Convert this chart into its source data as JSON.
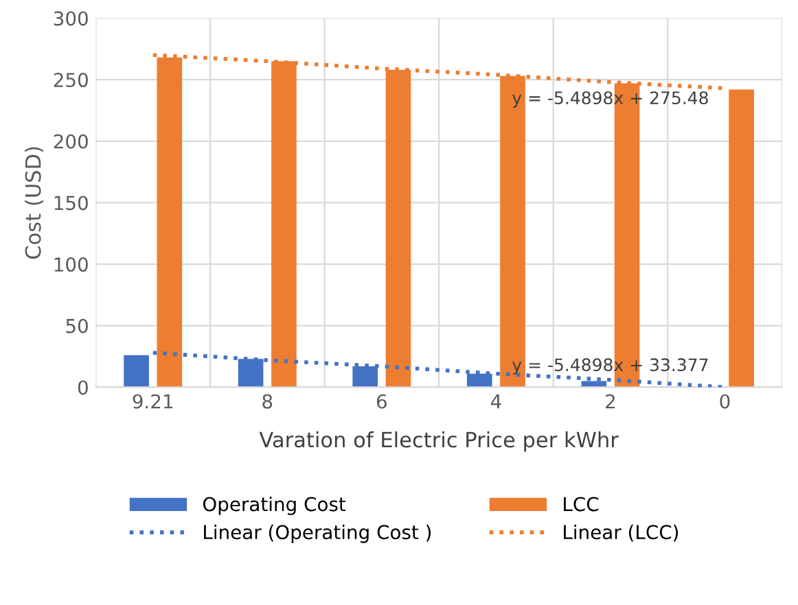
{
  "chart_data": {
    "type": "bar",
    "xlabel": "Varation of Electric Price per kWhr",
    "ylabel": "Cost (USD)",
    "categories": [
      "9.21",
      "8",
      "6",
      "4",
      "2",
      "0"
    ],
    "series": [
      {
        "name": "Operating Cost",
        "color": "#4472c4",
        "values": [
          26,
          23,
          17,
          11,
          5,
          0
        ]
      },
      {
        "name": "LCC",
        "color": "#ed7d31",
        "values": [
          268,
          265,
          258,
          253,
          247,
          242
        ]
      },
      {
        "name": "Linear (Operating Cost )",
        "type": "line",
        "line_style": "dotted",
        "color": "#4472c4",
        "values": [
          28,
          22,
          17,
          11,
          6,
          0
        ]
      },
      {
        "name": "Linear (LCC)",
        "type": "line",
        "line_style": "dotted",
        "color": "#ed7d31",
        "values": [
          270,
          265,
          259,
          254,
          248,
          243
        ]
      }
    ],
    "annotations": [
      {
        "text": "y = -5.4898x + 33.377",
        "x": "2",
        "y": 17
      },
      {
        "text": "y = -5.4898x + 275.48",
        "x": "2",
        "y": 234
      }
    ],
    "ylim": [
      0,
      300
    ],
    "yticks": [
      0,
      50,
      100,
      150,
      200,
      250,
      300
    ],
    "grid": true,
    "legend": "bottom"
  }
}
